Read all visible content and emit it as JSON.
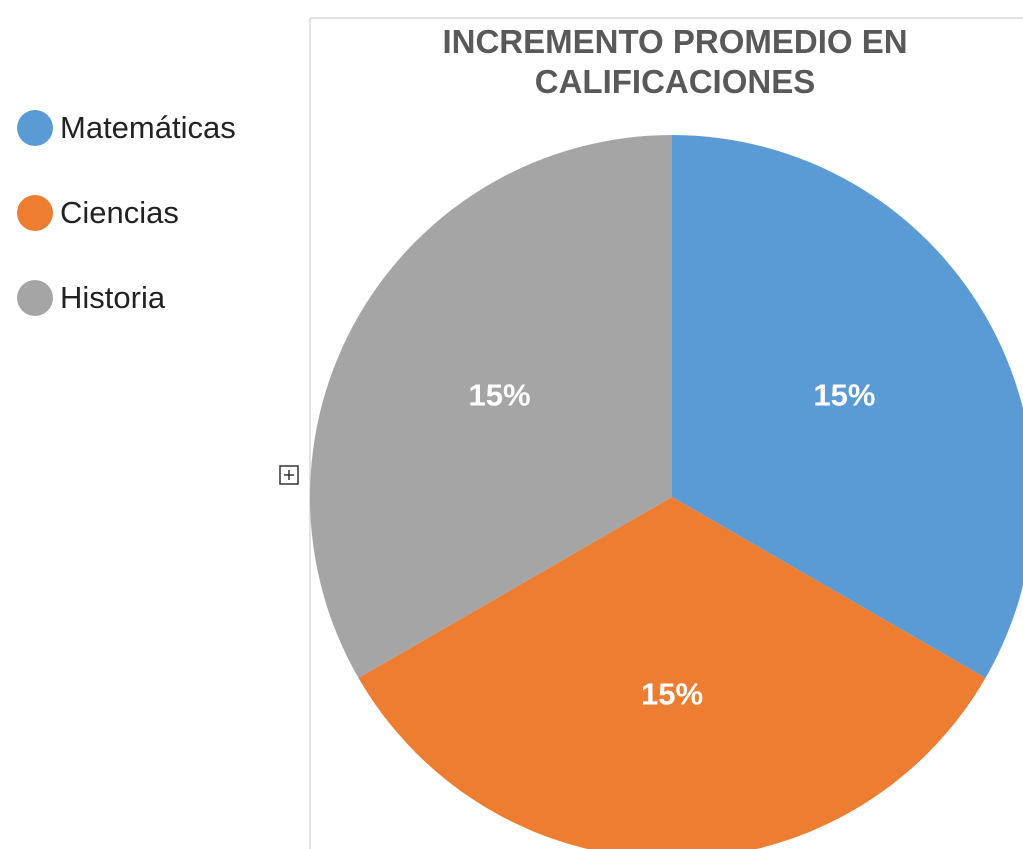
{
  "chart_data": {
    "type": "pie",
    "title": "INCREMENTO PROMEDIO EN CALIFICACIONES",
    "categories": [
      "Matemáticas",
      "Ciencias",
      "Historia"
    ],
    "values": [
      15,
      15,
      15
    ],
    "value_labels": [
      "15%",
      "15%",
      "15%"
    ],
    "colors": [
      "#5b9bd5",
      "#ed7d31",
      "#a5a5a5"
    ],
    "legend": "left"
  }
}
